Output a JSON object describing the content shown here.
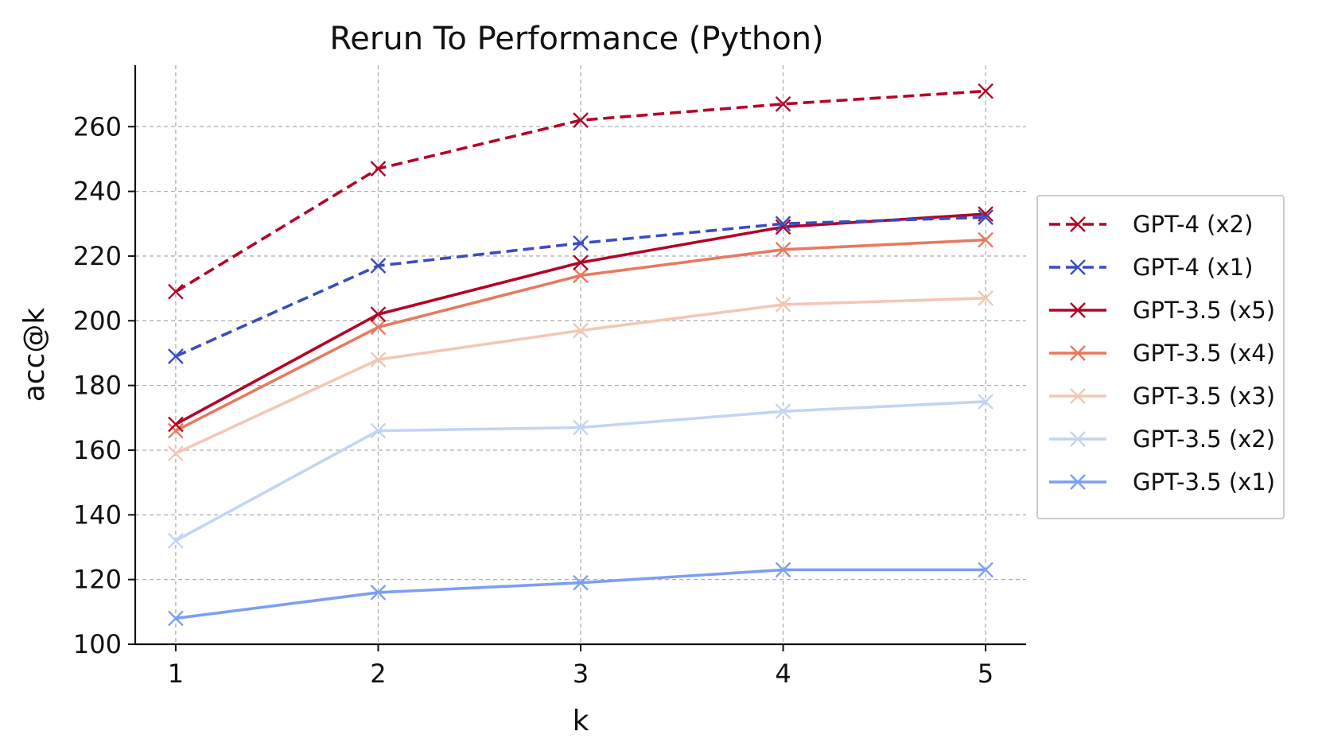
{
  "chart_data": {
    "type": "line",
    "title": "Rerun To Performance (Python)",
    "xlabel": "k",
    "ylabel": "acc@k",
    "x": [
      1,
      2,
      3,
      4,
      5
    ],
    "xticks": [
      "1",
      "2",
      "3",
      "4",
      "5"
    ],
    "yticks": [
      "100",
      "120",
      "140",
      "160",
      "180",
      "200",
      "220",
      "240",
      "260"
    ],
    "ylim": [
      100,
      279
    ],
    "xlim": [
      0.8,
      5.2
    ],
    "grid": true,
    "legend_position": "right",
    "series": [
      {
        "name": "GPT-4 (x2)",
        "values": [
          209,
          247,
          262,
          267,
          271
        ],
        "color": "#b40426",
        "dashed": true
      },
      {
        "name": "GPT-4 (x1)",
        "values": [
          189,
          217,
          224,
          230,
          232
        ],
        "color": "#3b4cc0",
        "dashed": true
      },
      {
        "name": "GPT-3.5 (x5)",
        "values": [
          168,
          202,
          218,
          229,
          233
        ],
        "color": "#b40426",
        "dashed": false
      },
      {
        "name": "GPT-3.5 (x4)",
        "values": [
          166,
          198,
          214,
          222,
          225
        ],
        "color": "#e8795f",
        "dashed": false
      },
      {
        "name": "GPT-3.5 (x3)",
        "values": [
          159,
          188,
          197,
          205,
          207
        ],
        "color": "#f2c8b4",
        "dashed": false
      },
      {
        "name": "GPT-3.5 (x2)",
        "values": [
          132,
          166,
          167,
          172,
          175
        ],
        "color": "#c3d5f4",
        "dashed": false
      },
      {
        "name": "GPT-3.5 (x1)",
        "values": [
          108,
          116,
          119,
          123,
          123
        ],
        "color": "#7b9ff2",
        "dashed": false
      }
    ]
  }
}
